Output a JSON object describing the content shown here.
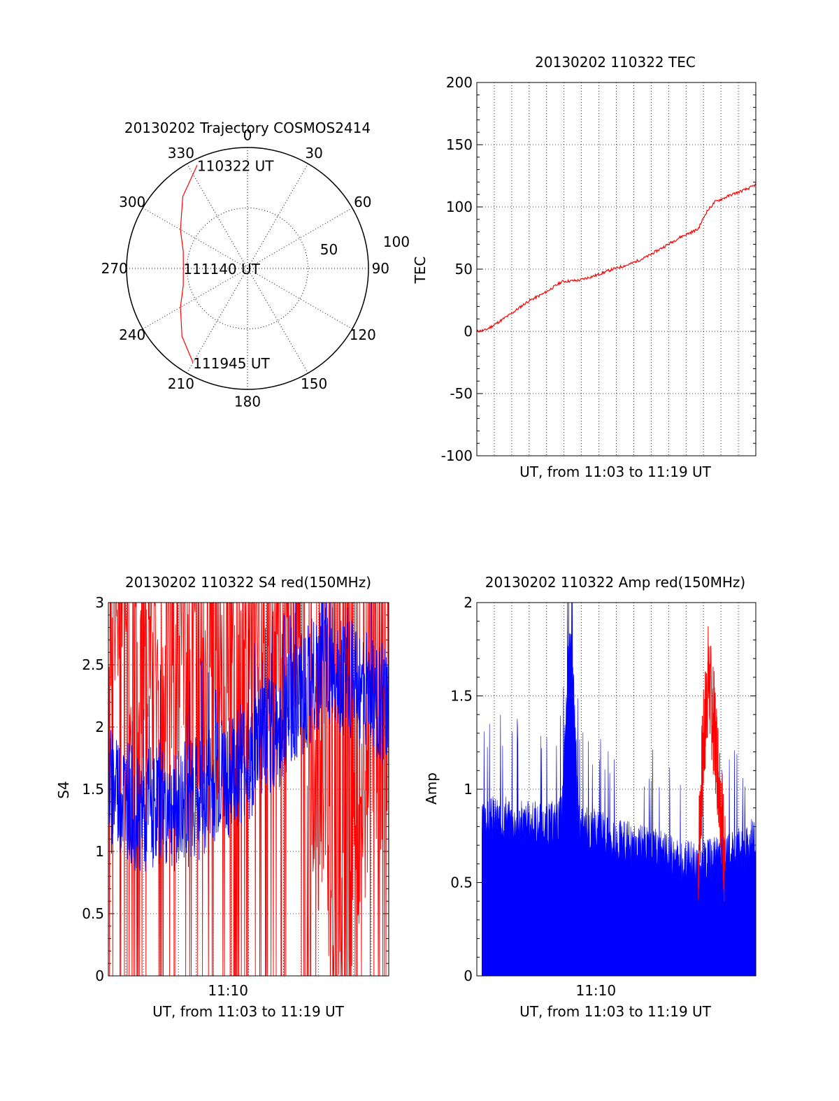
{
  "chart_data": [
    {
      "type": "polar",
      "title": "20130202 Trajectory COSMOS2414",
      "angle_labels": [
        "0",
        "30",
        "60",
        "90",
        "120",
        "150",
        "180",
        "210",
        "240",
        "270",
        "300",
        "330"
      ],
      "radius_labels": [
        "50",
        "100"
      ],
      "rlim": [
        0,
        100
      ],
      "grid": true,
      "series": [
        {
          "color": "#ff0000",
          "points": [
            {
              "az": 334,
              "r": 95
            },
            {
              "az": 318,
              "r": 80
            },
            {
              "az": 300,
              "r": 64
            },
            {
              "az": 285,
              "r": 55
            },
            {
              "az": 270,
              "r": 53
            },
            {
              "az": 255,
              "r": 55
            },
            {
              "az": 240,
              "r": 64
            },
            {
              "az": 224,
              "r": 78
            },
            {
              "az": 210,
              "r": 90
            }
          ]
        }
      ],
      "annotations": [
        {
          "text": "110322 UT",
          "az": 334,
          "r": 95
        },
        {
          "text": "111140 UT",
          "az": 270,
          "r": 53
        },
        {
          "text": "111945 UT",
          "az": 210,
          "r": 90
        }
      ]
    },
    {
      "type": "line",
      "title": "20130202 110322 TEC",
      "xlabel": "UT, from 11:03 to 11:19 UT",
      "ylabel": "TEC",
      "xlim": [
        0,
        16.4
      ],
      "ylim": [
        -100,
        200
      ],
      "yticks": [
        "-100",
        "-50",
        "0",
        "50",
        "100",
        "150",
        "200"
      ],
      "grid": true,
      "series": [
        {
          "color": "#ff0000",
          "x": [
            0,
            0.5,
            1,
            2,
            3,
            4,
            5,
            6,
            7,
            8,
            9,
            10,
            11,
            12,
            13,
            13.5,
            14,
            15,
            16,
            16.4
          ],
          "y": [
            0,
            1,
            5,
            14,
            24,
            31,
            40,
            41,
            45,
            50,
            54,
            60,
            68,
            76,
            82,
            96,
            104,
            110,
            115,
            118
          ]
        }
      ]
    },
    {
      "type": "line",
      "title": "20130202 110322 S4 red(150MHz)",
      "xlabel": "UT, from 11:03 to 11:19 UT",
      "ylabel": "S4",
      "xlim": [
        0,
        16.4
      ],
      "ylim": [
        0,
        3
      ],
      "xticks": [
        {
          "value": 7,
          "label": "11:10"
        }
      ],
      "yticks": [
        "0",
        "0.5",
        "1",
        "1.5",
        "2",
        "2.5",
        "3"
      ],
      "grid": true,
      "series": [
        {
          "color": "#ff0000",
          "x": [
            0,
            1,
            2,
            3,
            4,
            5,
            6,
            7,
            8,
            9,
            10,
            11,
            12,
            12.5,
            13,
            13.3,
            13.6,
            14,
            14.5,
            15,
            15.5,
            16,
            16.4
          ],
          "y": [
            2.4,
            2.5,
            2.3,
            2.2,
            2.1,
            2.2,
            2.0,
            2.3,
            2.4,
            2.3,
            2.5,
            2.2,
            1.6,
            1.0,
            0.5,
            0.25,
            0.2,
            0.6,
            1.0,
            1.4,
            1.6,
            1.8,
            2.0
          ]
        },
        {
          "color": "#0000ff",
          "x": [
            0,
            1,
            2,
            3,
            4,
            5,
            6,
            7,
            8,
            9,
            10,
            11,
            12,
            13,
            14,
            15,
            16,
            16.4
          ],
          "y": [
            1.5,
            1.4,
            1.3,
            1.4,
            1.3,
            1.4,
            1.5,
            1.6,
            1.7,
            1.9,
            2.0,
            2.2,
            2.4,
            2.5,
            2.4,
            2.3,
            2.2,
            2.1
          ]
        }
      ]
    },
    {
      "type": "line",
      "title": "20130202 110322 Amp red(150MHz)",
      "xlabel": "UT, from 11:03 to 11:19 UT",
      "ylabel": "Amp",
      "xlim": [
        0,
        16.4
      ],
      "ylim": [
        0,
        2
      ],
      "xticks": [
        {
          "value": 7,
          "label": "11:10"
        }
      ],
      "yticks": [
        "0",
        "0.5",
        "1",
        "1.5",
        "2"
      ],
      "grid": true,
      "series": [
        {
          "color": "#0000ff",
          "x": [
            0.3,
            1,
            2,
            3,
            4,
            5,
            5.5,
            6,
            7,
            8,
            9,
            10,
            11,
            12,
            13,
            14,
            15,
            16,
            16.4
          ],
          "y": [
            0.75,
            0.8,
            0.78,
            0.77,
            0.75,
            0.8,
            1.9,
            0.75,
            0.72,
            0.68,
            0.65,
            0.63,
            0.6,
            0.55,
            0.55,
            0.57,
            0.6,
            0.65,
            0.7
          ]
        },
        {
          "color": "#ff0000",
          "x": [
            13,
            13.3,
            13.6,
            14,
            14.3,
            14.6
          ],
          "y": [
            0.6,
            1.2,
            1.6,
            1.3,
            1.0,
            0.6
          ]
        }
      ]
    }
  ]
}
